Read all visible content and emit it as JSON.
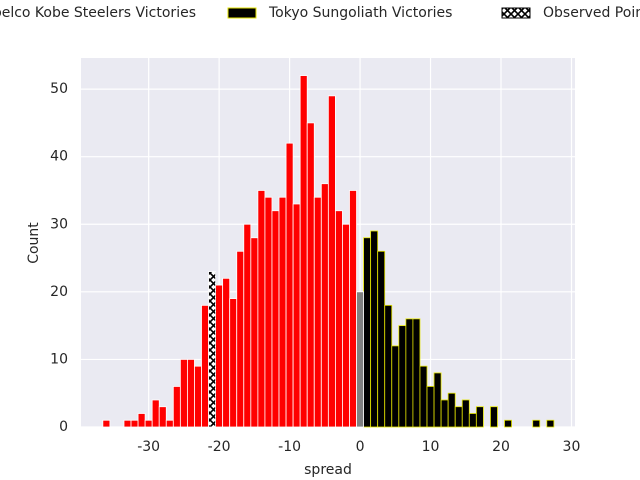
{
  "chart_data": {
    "type": "histogram",
    "xlabel": "spread",
    "ylabel": "Count",
    "xlim": [
      -39.6,
      30.5
    ],
    "ylim": [
      0,
      54.6
    ],
    "xticks": [
      -30,
      -20,
      -10,
      0,
      10,
      20,
      30
    ],
    "yticks": [
      0,
      10,
      20,
      30,
      40,
      50
    ],
    "grid": true,
    "legend": "top",
    "series": [
      {
        "name": "Kobelco Kobe Steelers Victories",
        "color": "#ff0000",
        "edge": "#ffffff",
        "x": [
          -36,
          -33,
          -32,
          -31,
          -30,
          -29,
          -28,
          -27,
          -26,
          -25,
          -24,
          -23,
          -22,
          -20,
          -19,
          -18,
          -17,
          -16,
          -15,
          -14,
          -13,
          -12,
          -11,
          -10,
          -9,
          -8,
          -7,
          -6,
          -5,
          -4,
          -3,
          -2,
          -1
        ],
        "values": [
          1,
          1,
          1,
          2,
          1,
          4,
          3,
          1,
          6,
          10,
          10,
          9,
          18,
          21,
          22,
          19,
          26,
          30,
          28,
          35,
          34,
          32,
          34,
          42,
          33,
          52,
          45,
          34,
          36,
          49,
          32,
          30,
          35
        ]
      },
      {
        "name": "Tokyo Sungoliath Victories",
        "color": "#000000",
        "edge": "#e6e600",
        "x": [
          1,
          2,
          3,
          4,
          5,
          6,
          7,
          8,
          9,
          10,
          11,
          12,
          13,
          14,
          15,
          16,
          17,
          19,
          21,
          25,
          27
        ],
        "values": [
          28,
          29,
          26,
          18,
          12,
          15,
          16,
          16,
          9,
          6,
          8,
          4,
          5,
          3,
          4,
          2,
          3,
          3,
          1,
          1,
          1
        ]
      },
      {
        "name": "Observed Point",
        "color": "#000000",
        "edge": "#ffffff",
        "hatch": true,
        "x": [
          -21
        ],
        "values": [
          23
        ]
      },
      {
        "color": "#808080",
        "edge": "#ffffff",
        "x": [
          0
        ],
        "values": [
          20
        ]
      }
    ]
  }
}
